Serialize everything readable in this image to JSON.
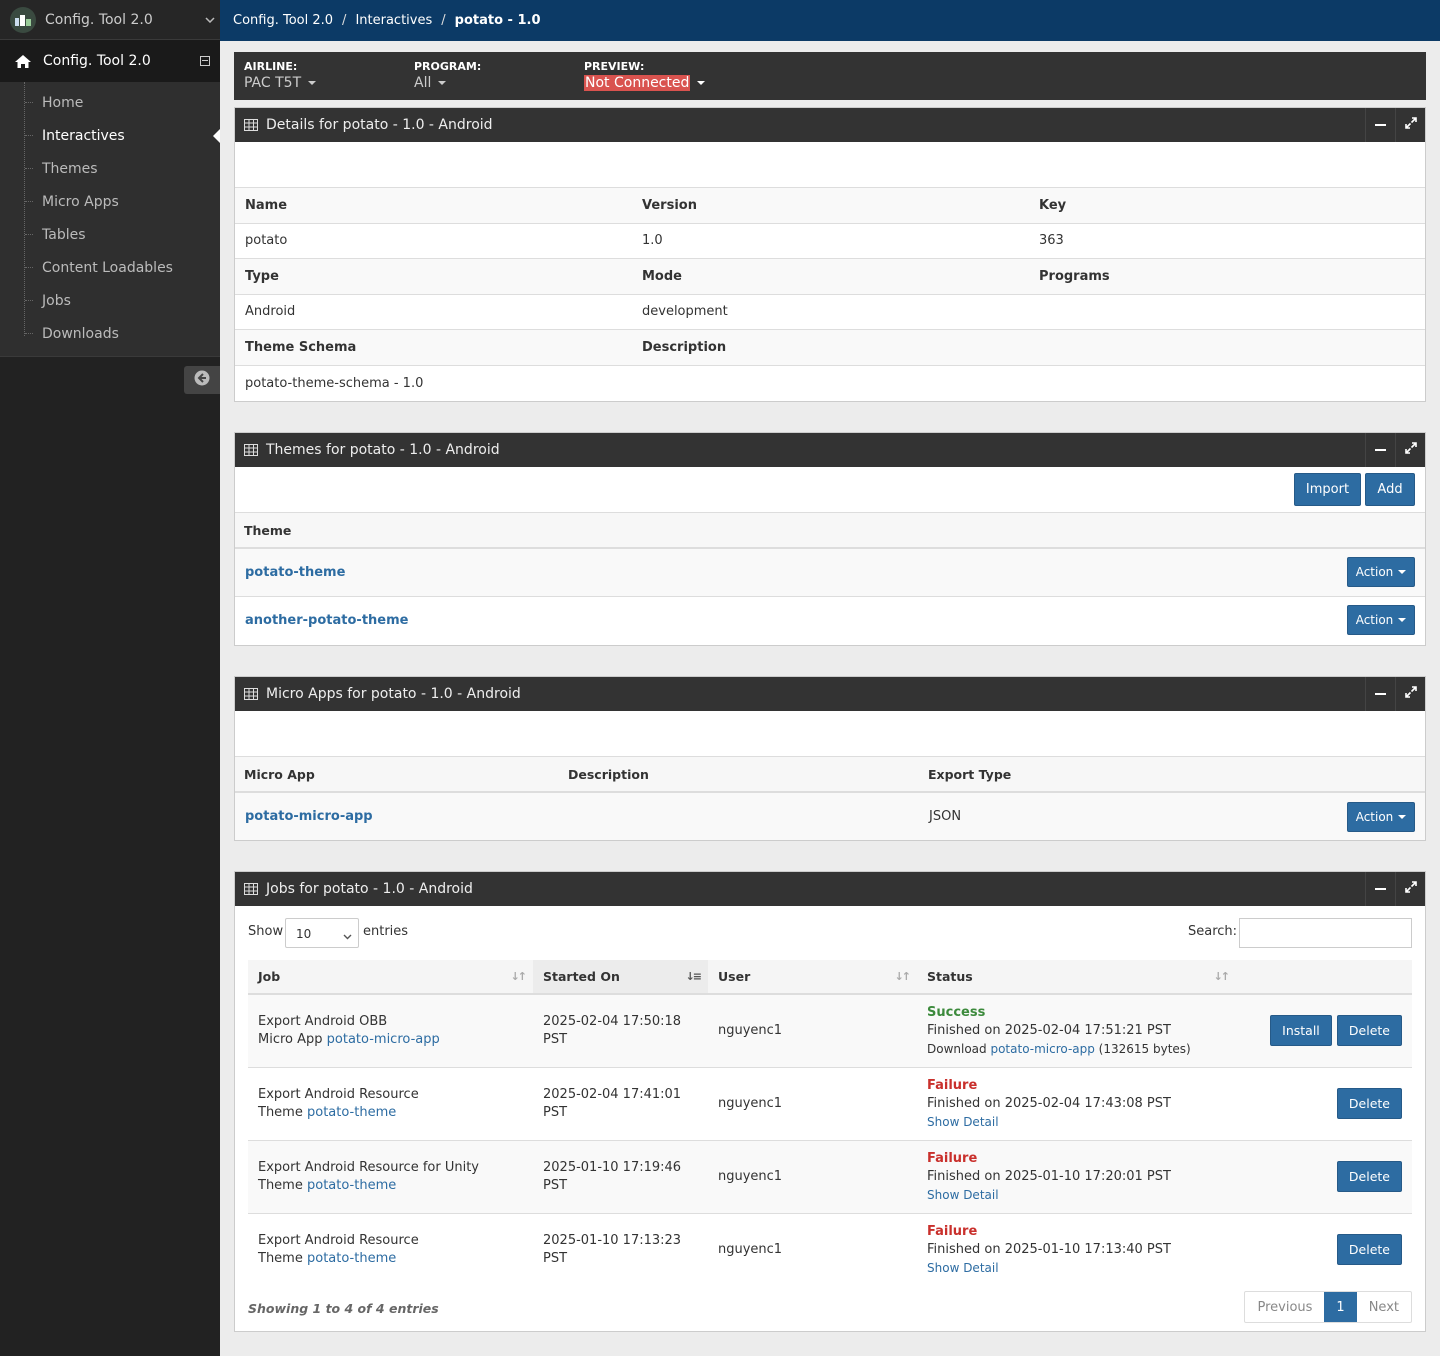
{
  "sidebar": {
    "brand_title": "Config. Tool 2.0",
    "section_title": "Config. Tool 2.0",
    "items": [
      {
        "label": "Home"
      },
      {
        "label": "Interactives"
      },
      {
        "label": "Themes"
      },
      {
        "label": "Micro Apps"
      },
      {
        "label": "Tables"
      },
      {
        "label": "Content Loadables"
      },
      {
        "label": "Jobs"
      },
      {
        "label": "Downloads"
      }
    ],
    "active_item": "Interactives"
  },
  "breadcrumb": [
    "Config. Tool 2.0",
    "Interactives",
    "potato - 1.0"
  ],
  "filters": {
    "airline": {
      "label": "AIRLINE:",
      "value": "PAC T5T"
    },
    "program": {
      "label": "PROGRAM:",
      "value": "All"
    },
    "preview": {
      "label": "PREVIEW:",
      "value": "Not Connected"
    }
  },
  "details": {
    "title": "Details for potato - 1.0 - Android",
    "rows": [
      {
        "labels": [
          "Name",
          "Version",
          "Key"
        ],
        "values": [
          "potato",
          "1.0",
          "363"
        ]
      },
      {
        "labels": [
          "Type",
          "Mode",
          "Programs"
        ],
        "values": [
          "Android",
          "development",
          ""
        ]
      },
      {
        "labels": [
          "Theme Schema",
          "Description",
          ""
        ],
        "values": [
          "potato-theme-schema - 1.0",
          "",
          ""
        ]
      }
    ]
  },
  "themes": {
    "title": "Themes for potato - 1.0 - Android",
    "import_label": "Import",
    "add_label": "Add",
    "column": "Theme",
    "rows": [
      {
        "name": "potato-theme",
        "action": "Action"
      },
      {
        "name": "another-potato-theme",
        "action": "Action"
      }
    ]
  },
  "micro_apps": {
    "title": "Micro Apps for potato - 1.0 - Android",
    "columns": [
      "Micro App",
      "Description",
      "Export Type"
    ],
    "rows": [
      {
        "name": "potato-micro-app",
        "description": "",
        "export_type": "JSON",
        "action": "Action"
      }
    ]
  },
  "jobs": {
    "title": "Jobs for potato - 1.0 - Android",
    "show_label": "Show",
    "page_size": "10",
    "entries_label": "entries",
    "search_label": "Search:",
    "search_value": "",
    "columns": [
      "Job",
      "Started On",
      "User",
      "Status"
    ],
    "rows": [
      {
        "job_line1": "Export Android OBB",
        "job_prefix": "Micro App ",
        "job_link": "potato-micro-app",
        "started_on": "2025-02-04 17:50:18 PST",
        "user": "nguyenc1",
        "status": "Success",
        "finished": "Finished on 2025-02-04 17:51:21 PST",
        "download_prefix": "Download ",
        "download_link": "potato-micro-app",
        "download_suffix": " (132615 bytes)",
        "install_label": "Install",
        "delete_label": "Delete"
      },
      {
        "job_line1": "Export Android Resource",
        "job_prefix": "Theme ",
        "job_link": "potato-theme",
        "started_on": "2025-02-04 17:41:01 PST",
        "user": "nguyenc1",
        "status": "Failure",
        "finished": "Finished on 2025-02-04 17:43:08 PST",
        "detail_link": "Show Detail",
        "delete_label": "Delete"
      },
      {
        "job_line1": "Export Android Resource for Unity",
        "job_prefix": "Theme ",
        "job_link": "potato-theme",
        "started_on": "2025-01-10 17:19:46 PST",
        "user": "nguyenc1",
        "status": "Failure",
        "finished": "Finished on 2025-01-10 17:20:01 PST",
        "detail_link": "Show Detail",
        "delete_label": "Delete"
      },
      {
        "job_line1": "Export Android Resource",
        "job_prefix": "Theme ",
        "job_link": "potato-theme",
        "started_on": "2025-01-10 17:13:23 PST",
        "user": "nguyenc1",
        "status": "Failure",
        "finished": "Finished on 2025-01-10 17:13:40 PST",
        "detail_link": "Show Detail",
        "delete_label": "Delete"
      }
    ],
    "info": "Showing 1 to 4 of 4 entries",
    "pagination": {
      "previous": "Previous",
      "current": "1",
      "next": "Next"
    }
  },
  "colors": {
    "topbar": "#0c3a66",
    "primary_button": "#2d6ca2",
    "success": "#3c8a3c",
    "failure": "#c9302c",
    "not_connected": "#d9534f"
  }
}
